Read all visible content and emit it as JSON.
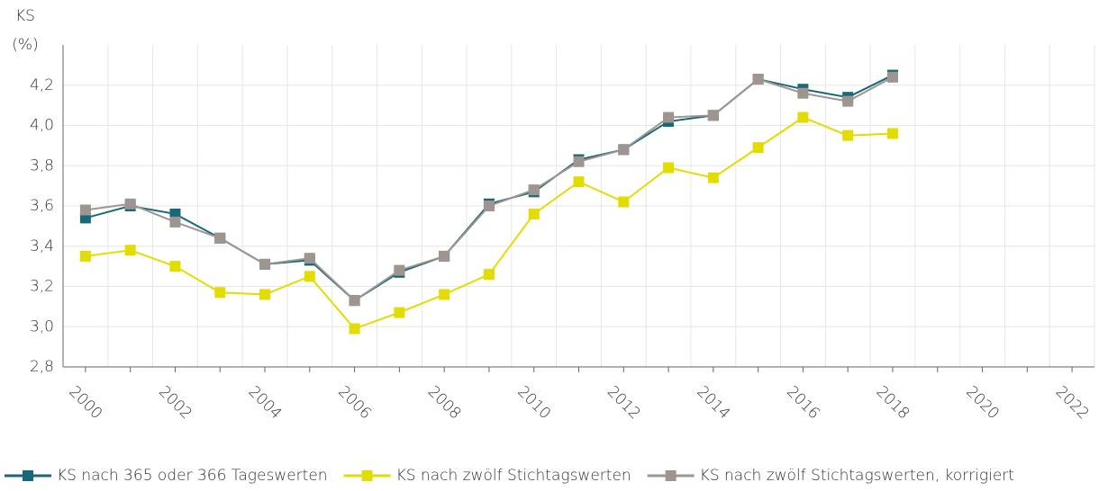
{
  "chart_data": {
    "type": "line",
    "y_label_lines": [
      "KS",
      "(%)"
    ],
    "x": [
      2000,
      2001,
      2002,
      2003,
      2004,
      2005,
      2006,
      2007,
      2008,
      2009,
      2010,
      2011,
      2012,
      2013,
      2014,
      2015,
      2016,
      2017,
      2018
    ],
    "series": [
      {
        "name": "KS nach 365 oder 366 Tageswerten",
        "color": "#17697a",
        "values": [
          3.54,
          3.6,
          3.56,
          3.44,
          3.31,
          3.33,
          3.13,
          3.27,
          3.35,
          3.61,
          3.67,
          3.83,
          3.88,
          4.02,
          4.05,
          4.23,
          4.18,
          4.14,
          4.25
        ]
      },
      {
        "name": "KS nach zwölf Stichtagswerten",
        "color": "#e3dc00",
        "values": [
          3.35,
          3.38,
          3.3,
          3.17,
          3.16,
          3.25,
          2.99,
          3.07,
          3.16,
          3.26,
          3.56,
          3.72,
          3.62,
          3.79,
          3.74,
          3.89,
          4.04,
          3.95,
          3.96
        ]
      },
      {
        "name": "KS nach zwölf Stichtagswerten, korrigiert",
        "color": "#9e9590",
        "values": [
          3.58,
          3.61,
          3.52,
          3.44,
          3.31,
          3.34,
          3.13,
          3.28,
          3.35,
          3.6,
          3.68,
          3.82,
          3.88,
          4.04,
          4.05,
          4.23,
          4.16,
          4.12,
          4.24
        ]
      }
    ],
    "xlim": [
      1999.5,
      2022.5
    ],
    "xticks": [
      2000,
      2002,
      2004,
      2006,
      2008,
      2010,
      2012,
      2014,
      2016,
      2018,
      2020,
      2022
    ],
    "ylim": [
      2.8,
      4.4
    ],
    "yticks": [
      {
        "value": 2.8,
        "label": "2,8"
      },
      {
        "value": 3.0,
        "label": "3,0"
      },
      {
        "value": 3.2,
        "label": "3,2"
      },
      {
        "value": 3.4,
        "label": "3,4"
      },
      {
        "value": 3.6,
        "label": "3,6"
      },
      {
        "value": 3.8,
        "label": "3,8"
      },
      {
        "value": 4.0,
        "label": "4,0"
      },
      {
        "value": 4.2,
        "label": "4,2"
      }
    ],
    "grid": true,
    "legend": "bottom"
  }
}
